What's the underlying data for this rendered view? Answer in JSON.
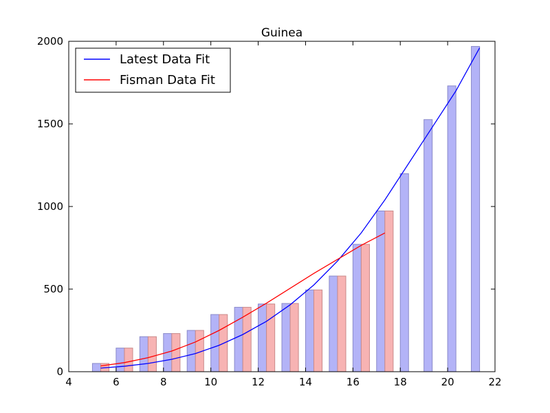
{
  "chart_data": {
    "type": "bar",
    "title": "Guinea",
    "xlabel": "",
    "ylabel": "",
    "xlim": [
      4,
      22
    ],
    "ylim": [
      0,
      2000
    ],
    "xticks": [
      4,
      6,
      8,
      10,
      12,
      14,
      16,
      18,
      20,
      22
    ],
    "yticks": [
      0,
      500,
      1000,
      1500,
      2000
    ],
    "grid": false,
    "legend": "upper-left",
    "bar_series": [
      {
        "color": "#b3b3f7",
        "edge": "#8a8ac9",
        "x": [
          5,
          6,
          7,
          8,
          9,
          10,
          11,
          12,
          13,
          14,
          15,
          16,
          17,
          18,
          19,
          20,
          21
        ],
        "values": [
          50,
          143,
          212,
          231,
          250,
          346,
          390,
          410,
          413,
          495,
          579,
          771,
          973,
          1199,
          1526,
          1730,
          1969
        ]
      },
      {
        "color": "#f7b3b3",
        "edge": "#c98a8a",
        "x": [
          5,
          6,
          7,
          8,
          9,
          10,
          11,
          12,
          13,
          14,
          15,
          16,
          17
        ],
        "values": [
          50,
          143,
          212,
          231,
          250,
          346,
          390,
          410,
          413,
          495,
          579,
          771,
          973
        ]
      }
    ],
    "line_series": [
      {
        "name": "Latest Data Fit",
        "color": "#0000ff",
        "x": [
          5.35,
          6.35,
          7.35,
          8.35,
          9.35,
          10.35,
          11.35,
          12.35,
          13.35,
          14.35,
          15.35,
          16.35,
          17.35,
          18.35,
          19.35,
          20.35,
          21.35
        ],
        "values": [
          22,
          33,
          50,
          75,
          110,
          160,
          225,
          305,
          405,
          525,
          670,
          840,
          1040,
          1260,
          1480,
          1700,
          1960
        ]
      },
      {
        "name": "Fisman Data Fit",
        "color": "#ff0000",
        "x": [
          5.35,
          6.35,
          7.35,
          8.35,
          9.35,
          10.35,
          11.35,
          12.35,
          13.35,
          14.35,
          15.35,
          16.35,
          17.35
        ],
        "values": [
          35,
          55,
          85,
          125,
          180,
          250,
          330,
          415,
          505,
          595,
          680,
          765,
          840
        ]
      }
    ]
  }
}
